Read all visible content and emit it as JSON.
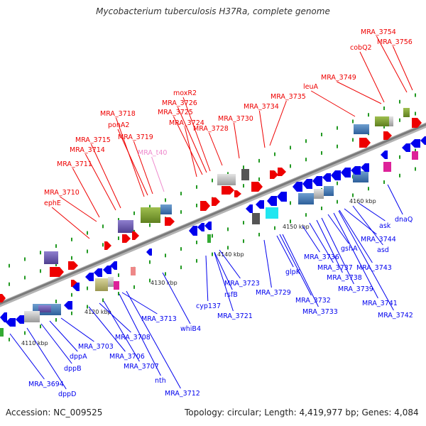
{
  "title": "Mycobacterium tuberculosis H37Ra, complete genome",
  "footer": {
    "accession": "Accession: NC_009525",
    "stats": "Topology: circular; Length: 4,419,977 bp; Genes: 4,084"
  },
  "colors": {
    "forward": "#ee0000",
    "reverse": "#0000ee",
    "trna": "#ee88cc",
    "backbone": "#8a8a8a",
    "scale_tick": "#229922"
  },
  "scale_labels": [
    "4110 kbp",
    "4120 kbp",
    "4130 kbp",
    "4140 kbp",
    "4150 kbp",
    "4160 kbp"
  ],
  "forward_genes": [
    "ephE",
    "MRA_3710",
    "MRA_3711",
    "MRA_3714",
    "MRA_3715",
    "MRA_3719",
    "MRA_3718",
    "ponA2",
    "MRA_t40",
    "MRA_3724",
    "MRA_3725",
    "MRA_3726",
    "moxR2",
    "MRA_3728",
    "MRA_3730",
    "MRA_3734",
    "MRA_3735",
    "leuA",
    "MRA_3749",
    "cobQ2",
    "MRA_3754",
    "MRA_3756"
  ],
  "reverse_genes": [
    "MRA_3694",
    "dppD",
    "dppB",
    "dppA",
    "MRA_3703",
    "MRA_3706",
    "MRA_3708",
    "MRA_3707",
    "nth",
    "MRA_3712",
    "MRA_3713",
    "whiB4",
    "cyp137",
    "rsfB",
    "MRA_3721",
    "MRA_3723",
    "MRA_3729",
    "glpK",
    "MRA_3732",
    "MRA_3733",
    "MRA_3736",
    "MRA_3737",
    "MRA_3738",
    "MRA_3739",
    "gshA",
    "MRA_3743",
    "MRA_3744",
    "asd",
    "ask",
    "MRA_3741",
    "MRA_3742",
    "dnaQ"
  ]
}
